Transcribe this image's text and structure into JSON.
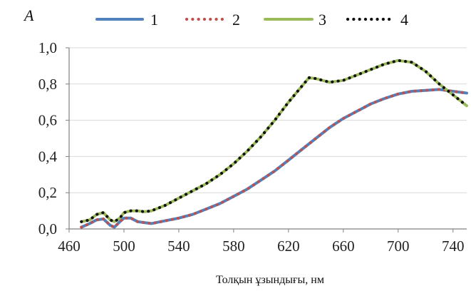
{
  "chart_data": {
    "type": "line",
    "title": "",
    "xlabel": "Толқын ұзындығы, нм",
    "ylabel": "A",
    "xlim": [
      460,
      750
    ],
    "ylim": [
      0.0,
      1.0
    ],
    "x_ticks": [
      460,
      500,
      540,
      580,
      620,
      660,
      700,
      740
    ],
    "y_ticks": [
      0.0,
      0.2,
      0.4,
      0.6,
      0.8,
      1.0
    ],
    "x_tick_labels": [
      "460",
      "500",
      "540",
      "580",
      "620",
      "660",
      "700",
      "740"
    ],
    "y_tick_labels": [
      "0,0",
      "0,2",
      "0,4",
      "0,6",
      "0,8",
      "1,0"
    ],
    "grid": "horizontal",
    "legend_position": "top",
    "series": [
      {
        "name": "1",
        "color": "#4f81bd",
        "style": "solid",
        "x": [
          469,
          475,
          480,
          485,
          490,
          493,
          497,
          500,
          505,
          510,
          515,
          520,
          530,
          540,
          550,
          560,
          570,
          580,
          590,
          600,
          610,
          620,
          630,
          640,
          650,
          660,
          670,
          680,
          690,
          700,
          710,
          720,
          730,
          740,
          750
        ],
        "y": [
          0.01,
          0.03,
          0.05,
          0.055,
          0.02,
          0.01,
          0.04,
          0.06,
          0.06,
          0.04,
          0.035,
          0.03,
          0.045,
          0.06,
          0.08,
          0.11,
          0.14,
          0.18,
          0.22,
          0.27,
          0.32,
          0.38,
          0.44,
          0.5,
          0.56,
          0.61,
          0.65,
          0.69,
          0.72,
          0.745,
          0.76,
          0.765,
          0.77,
          0.76,
          0.75
        ]
      },
      {
        "name": "2",
        "color": "#c0504d",
        "style": "dotted",
        "x": [
          469,
          475,
          480,
          485,
          490,
          493,
          497,
          500,
          505,
          510,
          515,
          520,
          530,
          540,
          550,
          560,
          570,
          580,
          590,
          600,
          610,
          620,
          630,
          640,
          650,
          660,
          670,
          680,
          690,
          700,
          710,
          720,
          730,
          740,
          750
        ],
        "y": [
          0.01,
          0.03,
          0.05,
          0.055,
          0.02,
          0.01,
          0.04,
          0.06,
          0.06,
          0.04,
          0.035,
          0.03,
          0.045,
          0.06,
          0.08,
          0.11,
          0.14,
          0.18,
          0.22,
          0.27,
          0.32,
          0.38,
          0.44,
          0.5,
          0.56,
          0.61,
          0.65,
          0.69,
          0.72,
          0.745,
          0.76,
          0.765,
          0.77,
          0.76,
          0.75
        ]
      },
      {
        "name": "3",
        "color": "#9bbb59",
        "style": "solid",
        "x": [
          469,
          475,
          480,
          485,
          490,
          493,
          497,
          500,
          505,
          510,
          515,
          520,
          530,
          540,
          550,
          560,
          570,
          580,
          590,
          600,
          610,
          620,
          630,
          635,
          640,
          650,
          660,
          670,
          680,
          690,
          700,
          710,
          720,
          730,
          740,
          750
        ],
        "y": [
          0.04,
          0.05,
          0.08,
          0.09,
          0.05,
          0.04,
          0.06,
          0.09,
          0.1,
          0.1,
          0.095,
          0.1,
          0.13,
          0.17,
          0.21,
          0.25,
          0.3,
          0.36,
          0.43,
          0.51,
          0.6,
          0.7,
          0.79,
          0.835,
          0.83,
          0.81,
          0.82,
          0.85,
          0.88,
          0.91,
          0.93,
          0.92,
          0.87,
          0.8,
          0.74,
          0.68
        ]
      },
      {
        "name": "4",
        "color": "#111111",
        "style": "dotted",
        "x": [
          469,
          475,
          480,
          485,
          490,
          493,
          497,
          500,
          505,
          510,
          515,
          520,
          530,
          540,
          550,
          560,
          570,
          580,
          590,
          600,
          610,
          620,
          630,
          635,
          640,
          650,
          660,
          670,
          680,
          690,
          700,
          710,
          720,
          730,
          740,
          750
        ],
        "y": [
          0.04,
          0.05,
          0.08,
          0.09,
          0.05,
          0.04,
          0.06,
          0.09,
          0.1,
          0.1,
          0.095,
          0.1,
          0.13,
          0.17,
          0.21,
          0.25,
          0.3,
          0.36,
          0.43,
          0.51,
          0.6,
          0.7,
          0.79,
          0.835,
          0.83,
          0.81,
          0.82,
          0.85,
          0.88,
          0.91,
          0.93,
          0.92,
          0.87,
          0.8,
          0.74,
          0.68
        ]
      }
    ]
  }
}
